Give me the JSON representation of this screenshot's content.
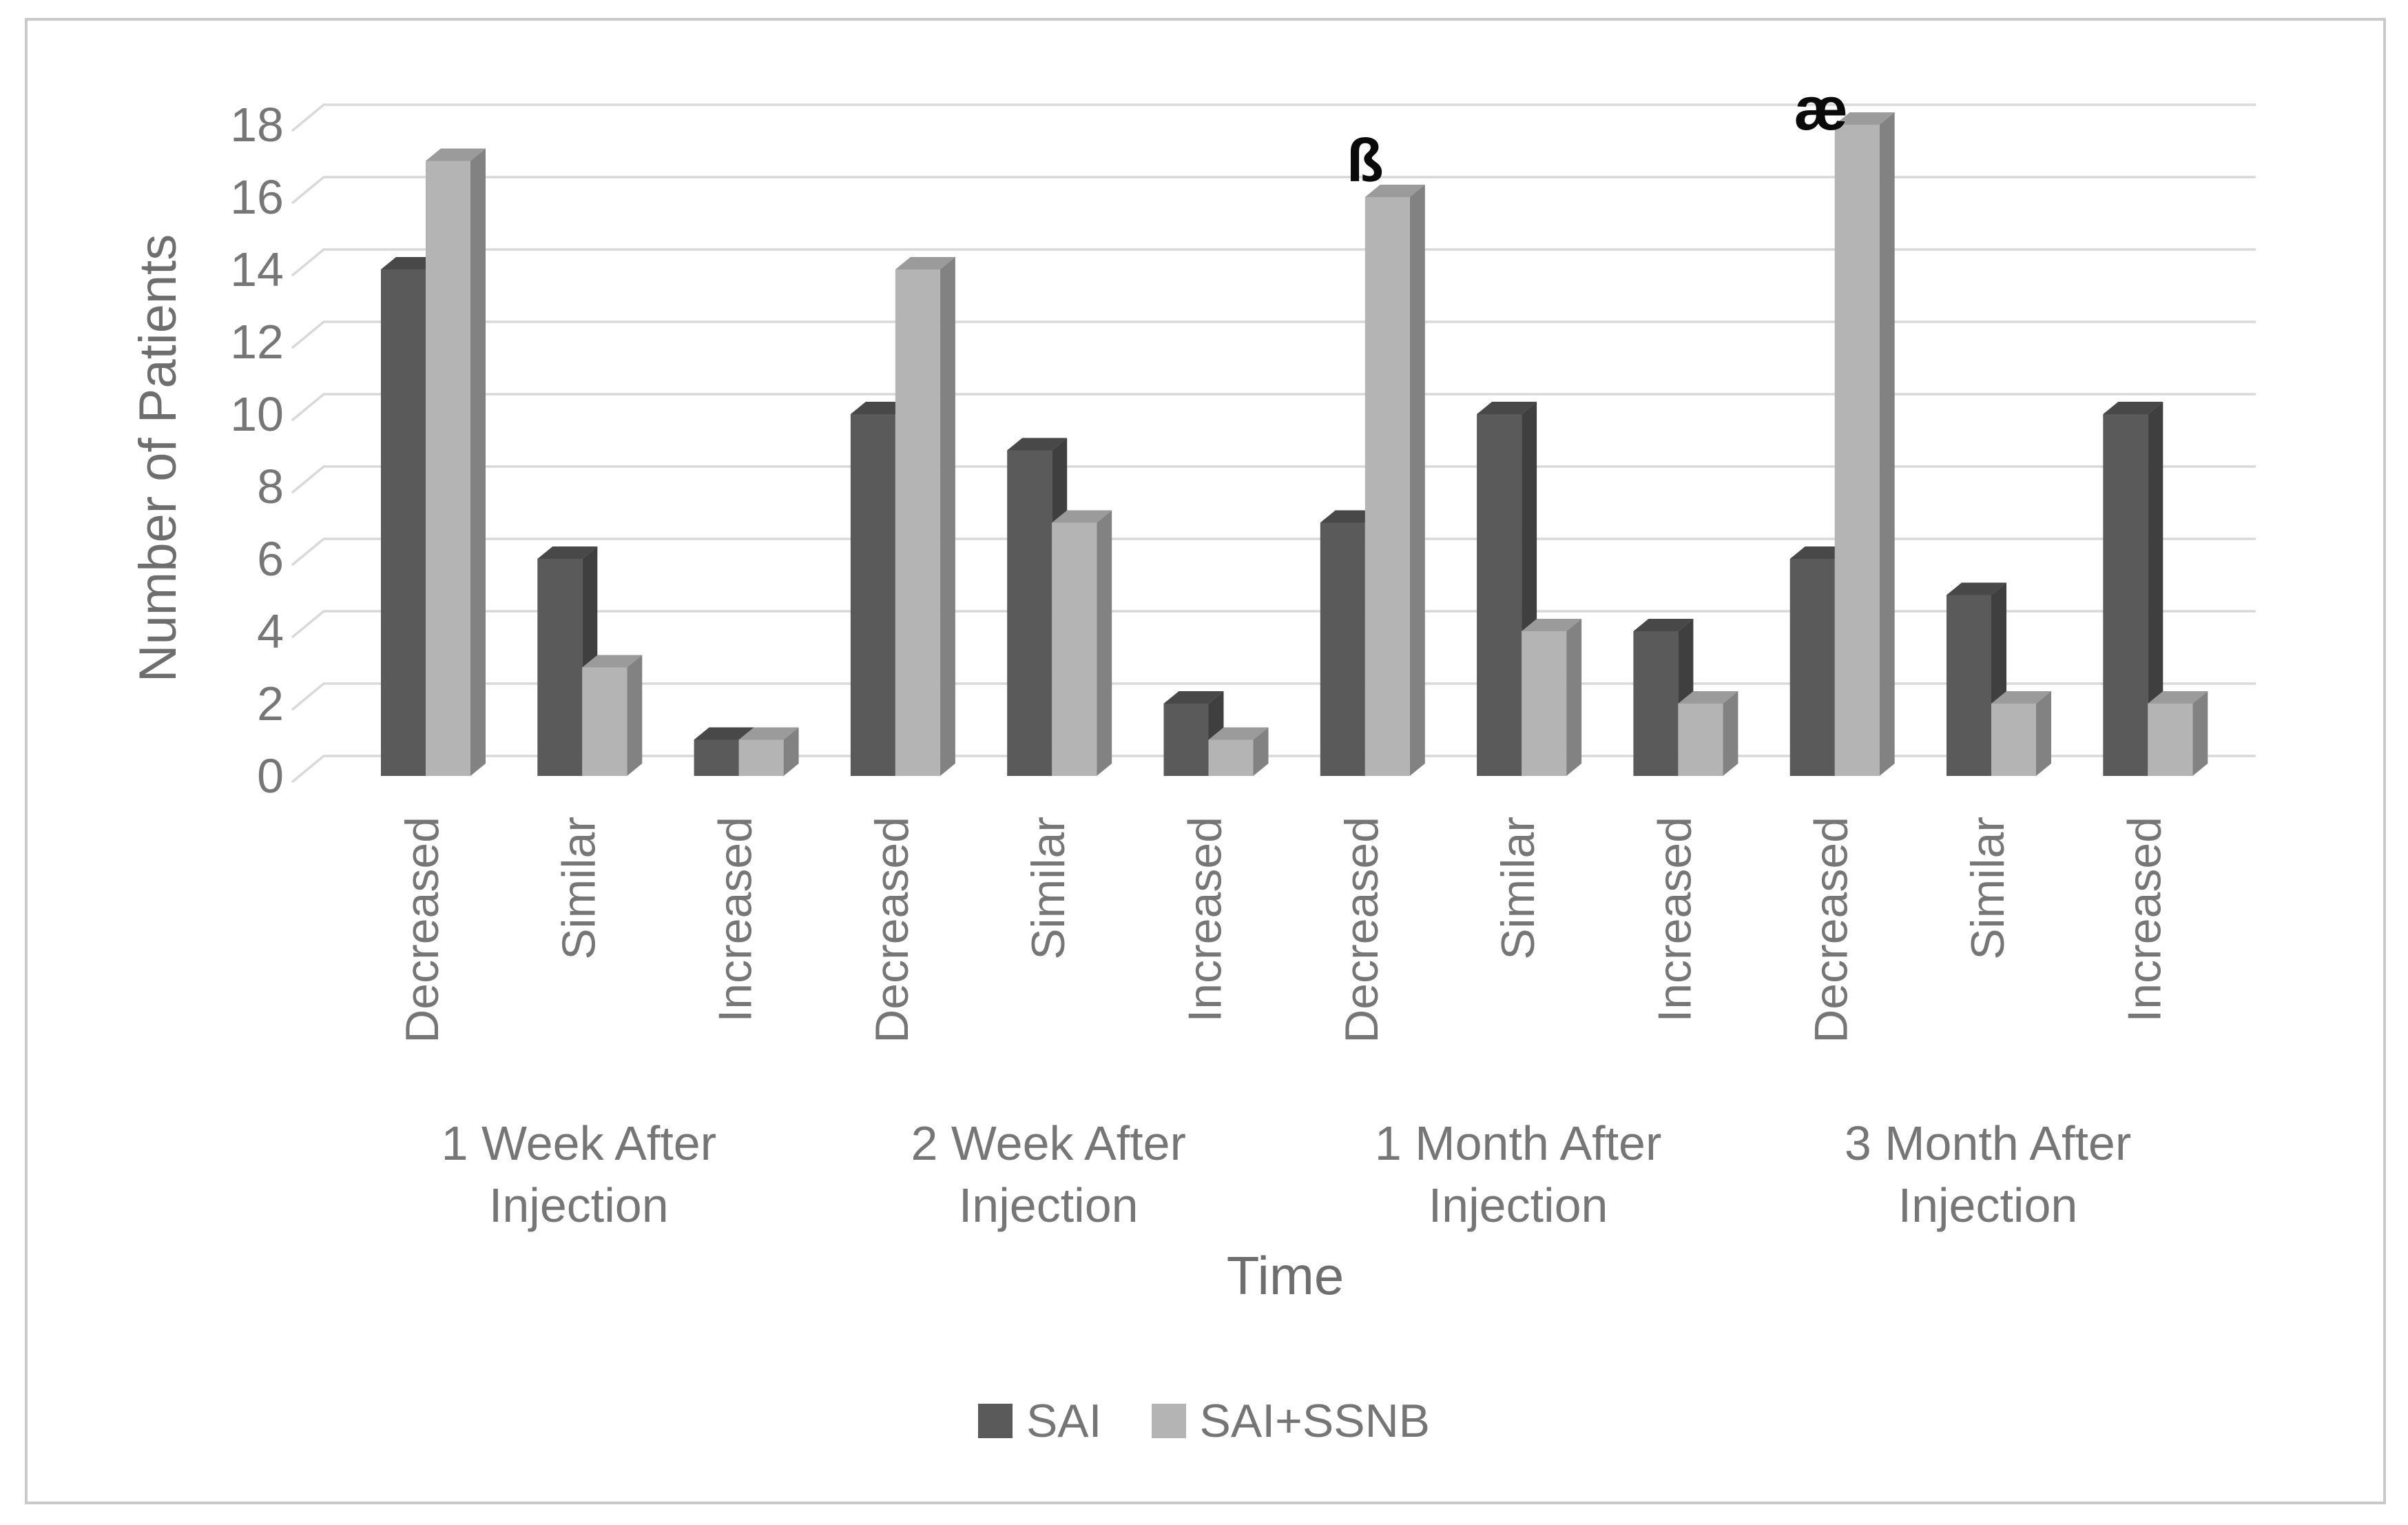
{
  "page": {
    "background": "#ffffff",
    "border_color": "#c9c9c9"
  },
  "chart_data": {
    "type": "bar",
    "style": "3d-column",
    "title": "",
    "xlabel": "Time",
    "ylabel": "Number of Patients",
    "ylim": [
      0,
      18
    ],
    "yticks": [
      0,
      2,
      4,
      6,
      8,
      10,
      12,
      14,
      16,
      18
    ],
    "grid": true,
    "legend_position": "bottom",
    "groups": [
      "1 Week After Injection",
      "2 Week After Injection",
      "1 Month After Injection",
      "3 Month After Injection"
    ],
    "categories_per_group": [
      "Decreased",
      "Similar",
      "Increased"
    ],
    "categories": [
      "Decreased",
      "Similar",
      "Increased",
      "Decreased",
      "Similar",
      "Increased",
      "Decreased",
      "Similar",
      "Increased",
      "Decreased",
      "Similar",
      "Increased"
    ],
    "series": [
      {
        "name": "SAI",
        "color": "#5a5a5a",
        "values": [
          14,
          6,
          1,
          10,
          9,
          2,
          7,
          10,
          4,
          6,
          5,
          10
        ]
      },
      {
        "name": "SAI+SSNB",
        "color": "#b4b4b4",
        "values": [
          17,
          3,
          1,
          14,
          7,
          1,
          16,
          4,
          2,
          18,
          2,
          2
        ]
      }
    ],
    "annotations": [
      {
        "text": "ß",
        "category_index": 6,
        "series": "SAI+SSNB",
        "value": 16
      },
      {
        "text": "æ",
        "category_index": 9,
        "series": "SAI+SSNB",
        "value": 18
      }
    ],
    "gridline_color": "#d9d9d9",
    "text_color": "#767676"
  },
  "legend": {
    "items": [
      {
        "label": "SAI",
        "color": "#5a5a5a"
      },
      {
        "label": "SAI+SSNB",
        "color": "#b4b4b4"
      }
    ]
  }
}
